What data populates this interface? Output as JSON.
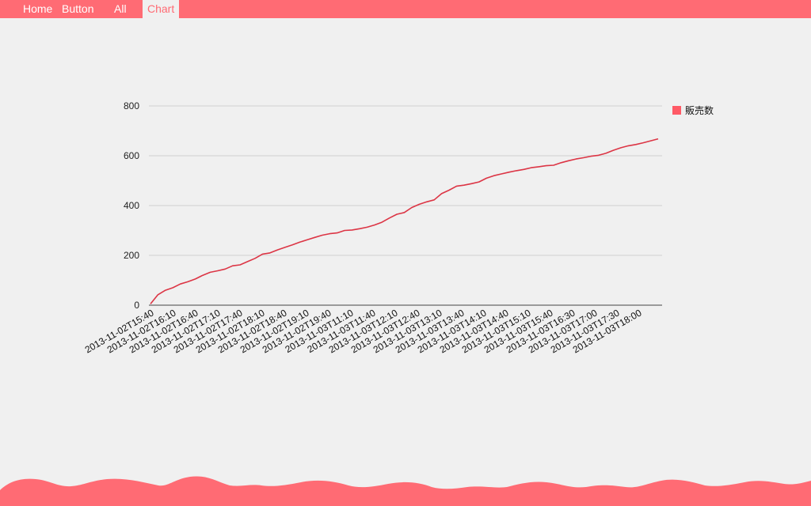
{
  "nav": {
    "items": [
      {
        "label": "Home"
      },
      {
        "label": "Button"
      },
      {
        "label": "All"
      },
      {
        "label": "Chart"
      }
    ],
    "active_index": 3
  },
  "theme": {
    "accent": "#ff6b74",
    "line_color": "#dc3545",
    "background": "#f0f0f0",
    "grid_color": "#d0d0d0"
  },
  "chart_data": {
    "type": "line",
    "title": "",
    "xlabel": "",
    "ylabel": "",
    "ylim": [
      0,
      800
    ],
    "yticks": [
      0,
      200,
      400,
      600,
      800
    ],
    "grid": true,
    "legend_position": "top-right",
    "tick_labels": [
      "2013-11-02T15:40",
      "2013-11-02T16:10",
      "2013-11-02T16:40",
      "2013-11-02T17:10",
      "2013-11-02T17:40",
      "2013-11-02T18:10",
      "2013-11-02T18:40",
      "2013-11-02T19:10",
      "2013-11-02T19:40",
      "2013-11-03T11:10",
      "2013-11-03T11:40",
      "2013-11-03T12:10",
      "2013-11-03T12:40",
      "2013-11-03T13:10",
      "2013-11-03T13:40",
      "2013-11-03T14:10",
      "2013-11-03T14:40",
      "2013-11-03T15:10",
      "2013-11-03T15:40",
      "2013-11-03T16:30",
      "2013-11-03T17:00",
      "2013-11-03T17:30",
      "2013-11-03T18:00"
    ],
    "series": [
      {
        "name": "販売数",
        "values": [
          5,
          42,
          60,
          70,
          85,
          94,
          105,
          120,
          132,
          138,
          145,
          158,
          162,
          175,
          188,
          205,
          210,
          222,
          232,
          242,
          253,
          263,
          272,
          281,
          287,
          290,
          300,
          302,
          307,
          313,
          322,
          333,
          350,
          365,
          372,
          392,
          405,
          415,
          423,
          448,
          462,
          478,
          482,
          488,
          495,
          510,
          520,
          527,
          534,
          540,
          545,
          552,
          556,
          560,
          562,
          572,
          580,
          587,
          592,
          598,
          602,
          610,
          622,
          632,
          640,
          645,
          652,
          660,
          668
        ]
      }
    ]
  }
}
